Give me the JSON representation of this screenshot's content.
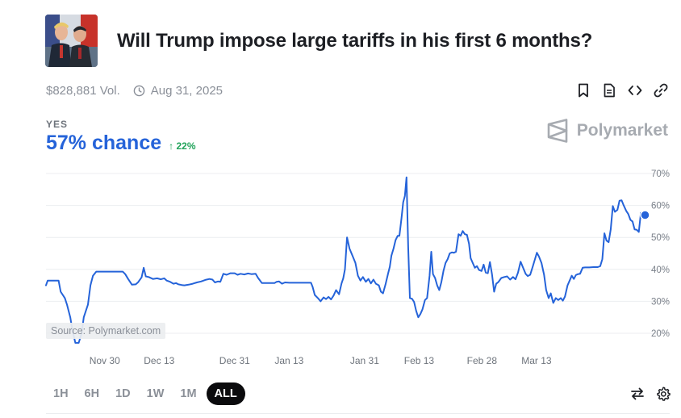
{
  "market": {
    "title": "Will Trump impose large tariffs in his first 6 months?",
    "volume": "$828,881 Vol.",
    "end_date": "Aug 31, 2025",
    "outcome_label": "YES",
    "chance": "57% chance",
    "change": "↑ 22%",
    "brand": "Polymarket",
    "source": "Source: Polymarket.com",
    "thumbnail_icon": "trump-xi-photo-icon"
  },
  "actions": [
    {
      "name": "bookmark-icon"
    },
    {
      "name": "document-icon"
    },
    {
      "name": "embed-icon"
    },
    {
      "name": "link-icon"
    }
  ],
  "ranges": [
    {
      "label": "1H",
      "active": false
    },
    {
      "label": "6H",
      "active": false
    },
    {
      "label": "1D",
      "active": false
    },
    {
      "label": "1W",
      "active": false
    },
    {
      "label": "1M",
      "active": false
    },
    {
      "label": "ALL",
      "active": true
    }
  ],
  "colors": {
    "line": "#2563d9",
    "up": "#21a35a",
    "grid": "#eceef0"
  },
  "chart_data": {
    "type": "line",
    "title": "",
    "xlabel": "",
    "ylabel": "",
    "ylim": [
      20,
      70
    ],
    "y_ticks": [
      70,
      60,
      50,
      40,
      30,
      20
    ],
    "y_tick_labels": [
      "70%",
      "60%",
      "50%",
      "40%",
      "30%",
      "20%"
    ],
    "x_ticks": [
      {
        "label": "Nov 30",
        "t": 14
      },
      {
        "label": "Dec 13",
        "t": 27
      },
      {
        "label": "Dec 31",
        "t": 45
      },
      {
        "label": "Jan 13",
        "t": 58
      },
      {
        "label": "Jan 31",
        "t": 76
      },
      {
        "label": "Feb 13",
        "t": 89
      },
      {
        "label": "Feb 28",
        "t": 104
      },
      {
        "label": "Mar 13",
        "t": 117
      }
    ],
    "grid": true,
    "series": [
      {
        "last_value": 57,
        "points": [
          [
            0,
            35
          ],
          [
            0.4,
            36.5
          ],
          [
            1,
            36.5
          ],
          [
            2,
            36.5
          ],
          [
            3,
            36.5
          ],
          [
            3.5,
            33
          ],
          [
            4.5,
            31
          ],
          [
            5,
            29
          ],
          [
            5.8,
            25
          ],
          [
            6.3,
            21
          ],
          [
            7,
            17
          ],
          [
            7.8,
            17
          ],
          [
            8.5,
            20
          ],
          [
            9,
            25
          ],
          [
            9.5,
            27
          ],
          [
            10,
            29
          ],
          [
            10.6,
            35
          ],
          [
            11.2,
            38
          ],
          [
            12,
            39.3
          ],
          [
            13,
            39.3
          ],
          [
            15,
            39.3
          ],
          [
            17,
            39.3
          ],
          [
            18.3,
            39.3
          ],
          [
            18.9,
            38.5
          ],
          [
            19.6,
            37
          ],
          [
            20.5,
            35.2
          ],
          [
            21.4,
            35.3
          ],
          [
            22,
            36
          ],
          [
            22.8,
            37.5
          ],
          [
            23.3,
            40.5
          ],
          [
            23.8,
            37.8
          ],
          [
            24.5,
            37.6
          ],
          [
            25.5,
            37
          ],
          [
            26.5,
            37.2
          ],
          [
            27.4,
            36.9
          ],
          [
            28.2,
            37.2
          ],
          [
            28.8,
            36.5
          ],
          [
            29.6,
            36.1
          ],
          [
            30.4,
            35.5
          ],
          [
            31,
            35.7
          ],
          [
            31.6,
            35.3
          ],
          [
            32.4,
            35.1
          ],
          [
            33,
            35
          ],
          [
            34,
            35.2
          ],
          [
            35,
            35.5
          ],
          [
            36,
            35.9
          ],
          [
            37,
            36.2
          ],
          [
            38,
            36.7
          ],
          [
            39,
            37
          ],
          [
            39.7,
            36.8
          ],
          [
            40.3,
            35.9
          ],
          [
            41,
            36.2
          ],
          [
            41.6,
            36.1
          ],
          [
            42.3,
            38.6
          ],
          [
            43.1,
            38.3
          ],
          [
            44,
            38.8
          ],
          [
            45,
            38.8
          ],
          [
            45.7,
            38.3
          ],
          [
            46.4,
            38.6
          ],
          [
            47.3,
            38.4
          ],
          [
            48.2,
            38.7
          ],
          [
            49,
            38.5
          ],
          [
            50,
            38.6
          ],
          [
            50.6,
            37.3
          ],
          [
            51.5,
            35.7
          ],
          [
            53,
            35.7
          ],
          [
            54.5,
            35.7
          ],
          [
            55,
            36.1
          ],
          [
            55.6,
            36.2
          ],
          [
            56.3,
            35.5
          ],
          [
            57,
            35.9
          ],
          [
            58,
            35.8
          ],
          [
            60,
            35.8
          ],
          [
            62,
            35.8
          ],
          [
            63.2,
            35.8
          ],
          [
            63.6,
            34.5
          ],
          [
            64.1,
            32
          ],
          [
            65,
            30.8
          ],
          [
            65.5,
            30
          ],
          [
            66.2,
            31.2
          ],
          [
            66.8,
            30.7
          ],
          [
            67.4,
            31.4
          ],
          [
            68,
            30.6
          ],
          [
            68.6,
            31.8
          ],
          [
            69.2,
            33.5
          ],
          [
            69.9,
            32.2
          ],
          [
            70.5,
            35.6
          ],
          [
            70.9,
            37.2
          ],
          [
            71.3,
            40
          ],
          [
            71.8,
            50
          ],
          [
            72.4,
            46.5
          ],
          [
            73.2,
            44
          ],
          [
            73.8,
            42
          ],
          [
            74.4,
            38
          ],
          [
            75,
            36.5
          ],
          [
            75.6,
            37.6
          ],
          [
            76.3,
            36.1
          ],
          [
            76.9,
            37
          ],
          [
            77.5,
            35.6
          ],
          [
            78.1,
            36.8
          ],
          [
            78.7,
            35.5
          ],
          [
            79.4,
            35
          ],
          [
            79.9,
            33
          ],
          [
            80.4,
            32.5
          ],
          [
            81,
            35.4
          ],
          [
            81.6,
            38.7
          ],
          [
            82,
            40.8
          ],
          [
            82.4,
            44.3
          ],
          [
            82.9,
            46.5
          ],
          [
            83.4,
            49.2
          ],
          [
            83.9,
            50.5
          ],
          [
            84.3,
            50.5
          ],
          [
            84.8,
            56
          ],
          [
            85.2,
            61
          ],
          [
            85.6,
            63
          ],
          [
            86,
            68.8
          ],
          [
            86.4,
            47
          ],
          [
            86.8,
            31
          ],
          [
            87.3,
            30.8
          ],
          [
            87.8,
            29.8
          ],
          [
            88.3,
            27
          ],
          [
            88.8,
            25
          ],
          [
            89.3,
            26
          ],
          [
            89.8,
            27.5
          ],
          [
            90.4,
            30.4
          ],
          [
            90.9,
            31
          ],
          [
            91.5,
            38
          ],
          [
            91.9,
            45.5
          ],
          [
            92.3,
            38.5
          ],
          [
            92.8,
            37.3
          ],
          [
            93.3,
            35
          ],
          [
            93.8,
            33.5
          ],
          [
            94.3,
            36
          ],
          [
            94.8,
            39.5
          ],
          [
            95.3,
            42
          ],
          [
            95.8,
            43.2
          ],
          [
            96.3,
            45
          ],
          [
            96.8,
            45.3
          ],
          [
            97.3,
            45.2
          ],
          [
            97.8,
            45.5
          ],
          [
            98.4,
            51
          ],
          [
            98.9,
            50.5
          ],
          [
            99.4,
            52
          ],
          [
            99.9,
            51
          ],
          [
            100.4,
            50.8
          ],
          [
            100.9,
            48
          ],
          [
            101.3,
            43.5
          ],
          [
            101.8,
            42
          ],
          [
            102.3,
            40.5
          ],
          [
            102.8,
            41
          ],
          [
            103.3,
            39.8
          ],
          [
            103.9,
            39.5
          ],
          [
            104.4,
            41.5
          ],
          [
            104.9,
            39
          ],
          [
            105.4,
            38.8
          ],
          [
            105.9,
            42.3
          ],
          [
            106.4,
            38.4
          ],
          [
            106.9,
            33
          ],
          [
            107.4,
            35.5
          ],
          [
            107.9,
            36
          ],
          [
            108.6,
            37.3
          ],
          [
            109.3,
            37.6
          ],
          [
            110,
            37.8
          ],
          [
            110.7,
            36.8
          ],
          [
            111.4,
            37.6
          ],
          [
            112,
            36.9
          ],
          [
            112.6,
            39
          ],
          [
            113.2,
            42.4
          ],
          [
            113.8,
            40.5
          ],
          [
            114.4,
            38.6
          ],
          [
            114.9,
            37.9
          ],
          [
            115.5,
            38.3
          ],
          [
            116.1,
            40.8
          ],
          [
            116.6,
            43
          ],
          [
            117.1,
            45.2
          ],
          [
            117.6,
            44
          ],
          [
            118.2,
            42
          ],
          [
            118.8,
            38.3
          ],
          [
            119.3,
            33.5
          ],
          [
            119.9,
            31
          ],
          [
            120.4,
            32.5
          ],
          [
            121,
            29.5
          ],
          [
            121.6,
            31
          ],
          [
            122.2,
            30.4
          ],
          [
            122.8,
            31
          ],
          [
            123.3,
            30.2
          ],
          [
            123.8,
            31.5
          ],
          [
            124.4,
            35
          ],
          [
            124.9,
            36.5
          ],
          [
            125.4,
            38
          ],
          [
            125.9,
            37
          ],
          [
            126.4,
            38.2
          ],
          [
            126.9,
            38.5
          ],
          [
            127.4,
            38.6
          ],
          [
            128,
            40.5
          ],
          [
            128.6,
            40.6
          ],
          [
            129.6,
            40.6
          ],
          [
            130.6,
            40.7
          ],
          [
            131.6,
            40.7
          ],
          [
            132.2,
            41
          ],
          [
            132.7,
            43.2
          ],
          [
            133.2,
            51.3
          ],
          [
            133.7,
            49
          ],
          [
            134.2,
            48.5
          ],
          [
            134.7,
            52.5
          ],
          [
            135.2,
            59.8
          ],
          [
            135.7,
            58
          ],
          [
            136.3,
            58.6
          ],
          [
            136.8,
            61.5
          ],
          [
            137.3,
            61.6
          ],
          [
            137.8,
            60
          ],
          [
            138.4,
            58.3
          ],
          [
            138.9,
            57.3
          ],
          [
            139.4,
            55.5
          ],
          [
            139.9,
            55
          ],
          [
            140.4,
            52.5
          ],
          [
            140.9,
            52.4
          ],
          [
            141.4,
            51.7
          ],
          [
            141.9,
            57.7
          ],
          [
            142.4,
            56.5
          ],
          [
            142.9,
            57
          ]
        ]
      }
    ]
  }
}
